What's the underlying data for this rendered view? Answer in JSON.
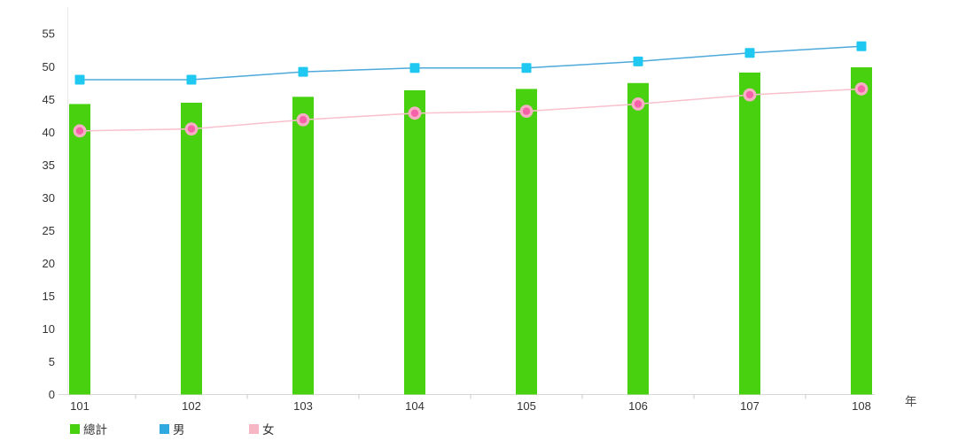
{
  "chart_data": {
    "type": "combo-bar-line",
    "title": "",
    "xlabel": "年",
    "ylabel": "",
    "categories": [
      "101",
      "102",
      "103",
      "104",
      "105",
      "106",
      "107",
      "108"
    ],
    "ylim": [
      0,
      55
    ],
    "ytick_step": 5,
    "grid": false,
    "legend_position": "bottom-left",
    "series": [
      {
        "name": "總計",
        "type": "bar",
        "color": "#47D10F",
        "values": [
          44.3,
          44.5,
          45.4,
          46.4,
          46.6,
          47.5,
          49.1,
          49.9
        ]
      },
      {
        "name": "男",
        "type": "line",
        "marker": "square",
        "marker_color": "#1FC8F1",
        "line_color": "#4EA9DA",
        "values": [
          48.0,
          48.0,
          49.2,
          49.8,
          49.8,
          50.8,
          52.1,
          53.1
        ]
      },
      {
        "name": "女",
        "type": "line",
        "marker": "circle",
        "marker_color": "#F661A9",
        "marker_ring_color": "#F7AFC4",
        "line_color": "#F9C0CE",
        "values": [
          40.2,
          40.5,
          41.9,
          42.9,
          43.2,
          44.3,
          45.7,
          46.6
        ]
      }
    ]
  },
  "legend": {
    "items": [
      {
        "label": "總計",
        "swatch_color": "#47D10F"
      },
      {
        "label": "男",
        "swatch_color": "#2FA9DF"
      },
      {
        "label": "女",
        "swatch_color": "#F6B6C4"
      }
    ]
  },
  "axis_colors": {
    "x_axis": "#D8D8D8",
    "y_axis": "#EAEAEA",
    "tick": "#C9C9C9",
    "label_text": "#333333"
  }
}
